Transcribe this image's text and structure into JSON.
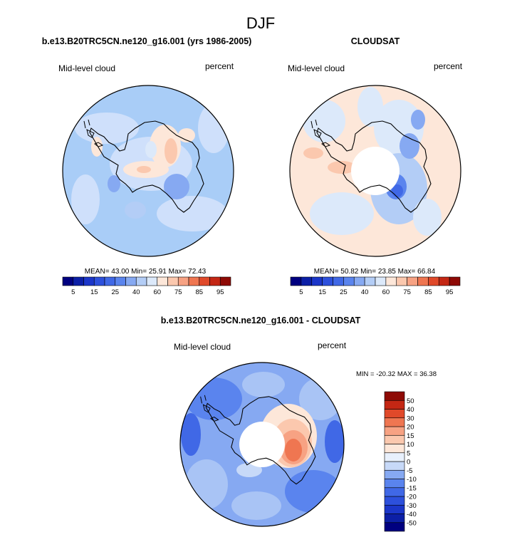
{
  "figure_title": "DJF",
  "colors": {
    "ocean": "#a9cdf7",
    "outline": "#000000",
    "hole": "#ffffff"
  },
  "chart_data": [
    {
      "type": "heatmap",
      "projection": "south-polar-stereographic",
      "title": "b.e13.B20TRC5CN.ne120_g16.001 (yrs 1986-2005)",
      "left_label": "Mid-level cloud",
      "right_label": "percent",
      "stats_text": "MEAN= 43.00  Min= 25.91  Max= 72.43",
      "stats": {
        "mean": 43.0,
        "min": 25.91,
        "max": 72.43
      },
      "colorbar": {
        "orientation": "horizontal",
        "levels": [
          5,
          10,
          15,
          20,
          25,
          30,
          40,
          50,
          60,
          70,
          75,
          80,
          85,
          90,
          95
        ],
        "tick_labels": [
          "5",
          "15",
          "25",
          "40",
          "60",
          "75",
          "85",
          "95"
        ],
        "colors": [
          "#000080",
          "#0c1fa6",
          "#1b36c9",
          "#2d50dc",
          "#4068e6",
          "#5a84ee",
          "#86a9f2",
          "#b3cdf6",
          "#dce9fa",
          "#fde7d9",
          "#fbc8ae",
          "#f7a283",
          "#ef7651",
          "#e0492a",
          "#c42714",
          "#8e0a05"
        ]
      }
    },
    {
      "type": "heatmap",
      "projection": "south-polar-stereographic",
      "title": "CLOUDSAT",
      "left_label": "Mid-level cloud",
      "right_label": "percent",
      "stats_text": "MEAN= 50.82  Min= 23.85  Max= 66.84",
      "stats": {
        "mean": 50.82,
        "min": 23.85,
        "max": 66.84
      },
      "colorbar": {
        "orientation": "horizontal",
        "levels": [
          5,
          10,
          15,
          20,
          25,
          30,
          40,
          50,
          60,
          70,
          75,
          80,
          85,
          90,
          95
        ],
        "tick_labels": [
          "5",
          "15",
          "25",
          "40",
          "60",
          "75",
          "85",
          "95"
        ],
        "colors": [
          "#000080",
          "#0c1fa6",
          "#1b36c9",
          "#2d50dc",
          "#4068e6",
          "#5a84ee",
          "#86a9f2",
          "#b3cdf6",
          "#dce9fa",
          "#fde7d9",
          "#fbc8ae",
          "#f7a283",
          "#ef7651",
          "#e0492a",
          "#c42714",
          "#8e0a05"
        ]
      }
    },
    {
      "type": "heatmap",
      "projection": "south-polar-stereographic",
      "title": "b.e13.B20TRC5CN.ne120_g16.001 - CLOUDSAT",
      "left_label": "Mid-level cloud",
      "right_label": "percent",
      "stats_text": "MIN = -20.32 MAX =  36.38",
      "stats": {
        "min": -20.32,
        "max": 36.38
      },
      "colorbar": {
        "orientation": "vertical",
        "levels": [
          -50,
          -40,
          -30,
          -20,
          -15,
          -10,
          -5,
          0,
          5,
          10,
          15,
          20,
          30,
          40,
          50
        ],
        "tick_labels": [
          "50",
          "40",
          "30",
          "20",
          "15",
          "10",
          "5",
          "0",
          "-5",
          "-10",
          "-15",
          "-20",
          "-30",
          "-40",
          "-50"
        ],
        "colors": [
          "#000080",
          "#0c1fa6",
          "#1b36c9",
          "#2d50dc",
          "#4068e6",
          "#5a84ee",
          "#86a9f2",
          "#c7d9f8",
          "#e8f0fc",
          "#fde7d9",
          "#fbc8ae",
          "#f7a283",
          "#ef7651",
          "#e0492a",
          "#c42714",
          "#8e0a05"
        ]
      }
    }
  ]
}
